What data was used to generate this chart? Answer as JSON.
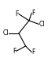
{
  "c_nodes": {
    "c1": [
      0.52,
      0.75
    ],
    "c2": [
      0.28,
      0.5
    ],
    "c3": [
      0.44,
      0.25
    ]
  },
  "cc_bonds": [
    [
      "c1",
      "c2"
    ],
    [
      "c2",
      "c3"
    ]
  ],
  "substituents": [
    {
      "from": "c1",
      "to": [
        0.28,
        0.88
      ],
      "label": "F",
      "ha": "right",
      "va": "center"
    },
    {
      "from": "c1",
      "to": [
        0.58,
        0.9
      ],
      "label": "F",
      "ha": "left",
      "va": "center"
    },
    {
      "from": "c1",
      "to": [
        0.75,
        0.68
      ],
      "label": "Cl",
      "ha": "left",
      "va": "center"
    },
    {
      "from": "c2",
      "to": [
        0.05,
        0.5
      ],
      "label": "Cl",
      "ha": "right",
      "va": "center"
    },
    {
      "from": "c3",
      "to": [
        0.22,
        0.15
      ],
      "label": "F",
      "ha": "right",
      "va": "center"
    },
    {
      "from": "c3",
      "to": [
        0.58,
        0.13
      ],
      "label": "F",
      "ha": "left",
      "va": "center"
    }
  ],
  "lw": 0.8,
  "fontsize": 5.5,
  "bg_color": "#ffffff",
  "figsize": [
    0.7,
    0.83
  ],
  "dpi": 100
}
